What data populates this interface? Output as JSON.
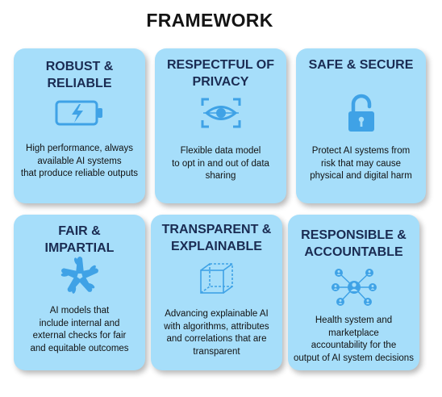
{
  "title": "FRAMEWORK",
  "accent": "#3fa2e6",
  "card_color": "#a6defa",
  "cards": [
    {
      "head": [
        "ROBUST &",
        "RELIABLE"
      ],
      "icon": "battery-charging-icon",
      "desc": [
        "High performance, always",
        "available AI systems",
        "that produce reliable outputs"
      ]
    },
    {
      "head": [
        "RESPECTFUL OF",
        "PRIVACY"
      ],
      "icon": "eye-scan-icon",
      "desc": [
        "Flexible data model",
        "to opt in and out of data",
        "sharing"
      ]
    },
    {
      "head": [
        "SAFE & SECURE"
      ],
      "icon": "padlock-icon",
      "desc": [
        "Protect AI systems from",
        "risk that may cause",
        "physical and digital harm"
      ]
    },
    {
      "head": [
        "FAIR &",
        "IMPARTIAL"
      ],
      "icon": "joined-hands-icon",
      "desc": [
        "AI models that",
        "include internal and",
        "external checks  for fair",
        "and equitable outcomes"
      ]
    },
    {
      "head": [
        "TRANSPARENT &",
        "EXPLAINABLE"
      ],
      "icon": "transparent-cube-icon",
      "desc": [
        "Advancing explainable AI",
        "with algorithms, attributes",
        "and correlations that are",
        "transparent"
      ]
    },
    {
      "head": [
        "RESPONSIBLE &",
        "ACCOUNTABLE"
      ],
      "icon": "people-network-icon",
      "desc": [
        "Health system and",
        "marketplace",
        "accountability for the",
        "output of AI system decisions"
      ]
    }
  ]
}
